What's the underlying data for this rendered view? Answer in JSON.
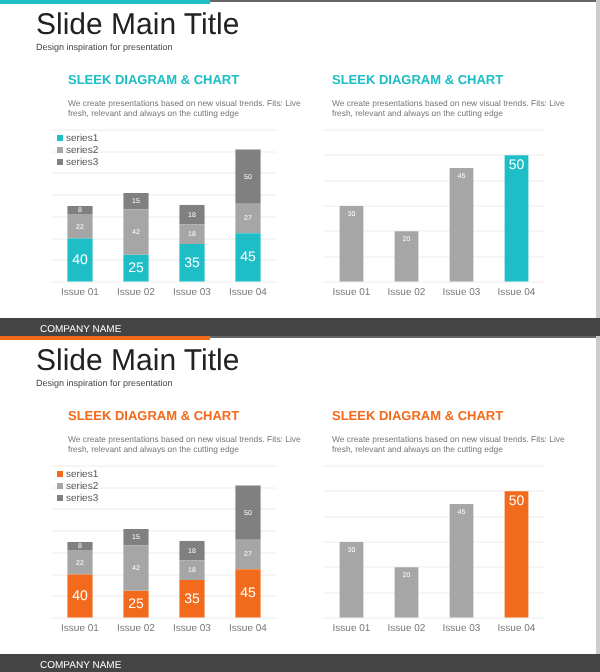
{
  "chart_data": [
    {
      "type": "bar",
      "stacked": true,
      "title": "SLEEK DIAGRAM & CHART",
      "subtitle": "We create presentations based on new visual trends. Fits: Live fresh, relevant and always on the cutting edge",
      "annotations": [
        "Slide Main Title",
        "Design inspiration for presentation",
        "COMPANY NAME"
      ],
      "categories": [
        "Issue 01",
        "Issue 02",
        "Issue 03",
        "Issue 04"
      ],
      "series": [
        {
          "name": "series1",
          "color": "#1dbec6",
          "values": [
            40,
            25,
            35,
            45
          ]
        },
        {
          "name": "series2",
          "color": "#a6a6a6",
          "values": [
            22,
            42,
            18,
            27
          ]
        },
        {
          "name": "series3",
          "color": "#808080",
          "values": [
            8,
            15,
            18,
            50
          ]
        }
      ],
      "ylim": [
        0,
        140
      ],
      "yticks": [
        {
          "value": 0,
          "label": null
        },
        {
          "value": 20,
          "label": null
        },
        {
          "value": 40,
          "label": null
        },
        {
          "value": 60,
          "label": null
        },
        {
          "value": 80,
          "label": null
        },
        {
          "value": 100,
          "label": null
        },
        {
          "value": 120,
          "label": null
        },
        {
          "value": 140,
          "label": null
        }
      ],
      "tick_labels": "x",
      "grid": "y",
      "legend": "top left",
      "data_labels": true
    },
    {
      "type": "bar",
      "title": "SLEEK DIAGRAM & CHART",
      "subtitle": "We create presentations based on new visual trends. Fits: Live fresh, relevant and always on the cutting edge",
      "categories": [
        "Issue 01",
        "Issue 02",
        "Issue 03",
        "Issue 04"
      ],
      "values": [
        30,
        20,
        45,
        50
      ],
      "colors": [
        "#a6a6a6",
        "#a6a6a6",
        "#a6a6a6",
        "#1dbec6"
      ],
      "ylim": [
        0,
        60
      ],
      "yticks": [
        {
          "value": 0,
          "label": null
        },
        {
          "value": 10,
          "label": null
        },
        {
          "value": 20,
          "label": null
        },
        {
          "value": 30,
          "label": null
        },
        {
          "value": 40,
          "label": null
        },
        {
          "value": 50,
          "label": null
        },
        {
          "value": 60,
          "label": null
        }
      ],
      "tick_labels": "x",
      "grid": "y",
      "data_labels": true
    },
    {
      "type": "bar",
      "stacked": true,
      "title": "SLEEK DIAGRAM & CHART",
      "subtitle": "We create presentations based on new visual trends. Fits: Live fresh, relevant and always on the cutting edge",
      "annotations": [
        "Slide Main Title",
        "Design inspiration for presentation",
        "COMPANY NAME"
      ],
      "categories": [
        "Issue 01",
        "Issue 02",
        "Issue 03",
        "Issue 04"
      ],
      "series": [
        {
          "name": "series1",
          "color": "#f26a1b",
          "values": [
            40,
            25,
            35,
            45
          ]
        },
        {
          "name": "series2",
          "color": "#a6a6a6",
          "values": [
            22,
            42,
            18,
            27
          ]
        },
        {
          "name": "series3",
          "color": "#808080",
          "values": [
            8,
            15,
            18,
            50
          ]
        }
      ],
      "ylim": [
        0,
        140
      ],
      "yticks": [
        {
          "value": 0,
          "label": null
        },
        {
          "value": 20,
          "label": null
        },
        {
          "value": 40,
          "label": null
        },
        {
          "value": 60,
          "label": null
        },
        {
          "value": 80,
          "label": null
        },
        {
          "value": 100,
          "label": null
        },
        {
          "value": 120,
          "label": null
        },
        {
          "value": 140,
          "label": null
        }
      ],
      "tick_labels": "x",
      "grid": "y",
      "legend": "top left",
      "data_labels": true
    },
    {
      "type": "bar",
      "title": "SLEEK DIAGRAM & CHART",
      "subtitle": "We create presentations based on new visual trends. Fits: Live fresh, relevant and always on the cutting edge",
      "categories": [
        "Issue 01",
        "Issue 02",
        "Issue 03",
        "Issue 04"
      ],
      "values": [
        30,
        20,
        45,
        50
      ],
      "colors": [
        "#a6a6a6",
        "#a6a6a6",
        "#a6a6a6",
        "#f26a1b"
      ],
      "ylim": [
        0,
        60
      ],
      "yticks": [
        {
          "value": 0,
          "label": null
        },
        {
          "value": 10,
          "label": null
        },
        {
          "value": 20,
          "label": null
        },
        {
          "value": 30,
          "label": null
        },
        {
          "value": 40,
          "label": null
        },
        {
          "value": 50,
          "label": null
        },
        {
          "value": 60,
          "label": null
        }
      ],
      "tick_labels": "x",
      "grid": "y",
      "data_labels": true
    }
  ]
}
